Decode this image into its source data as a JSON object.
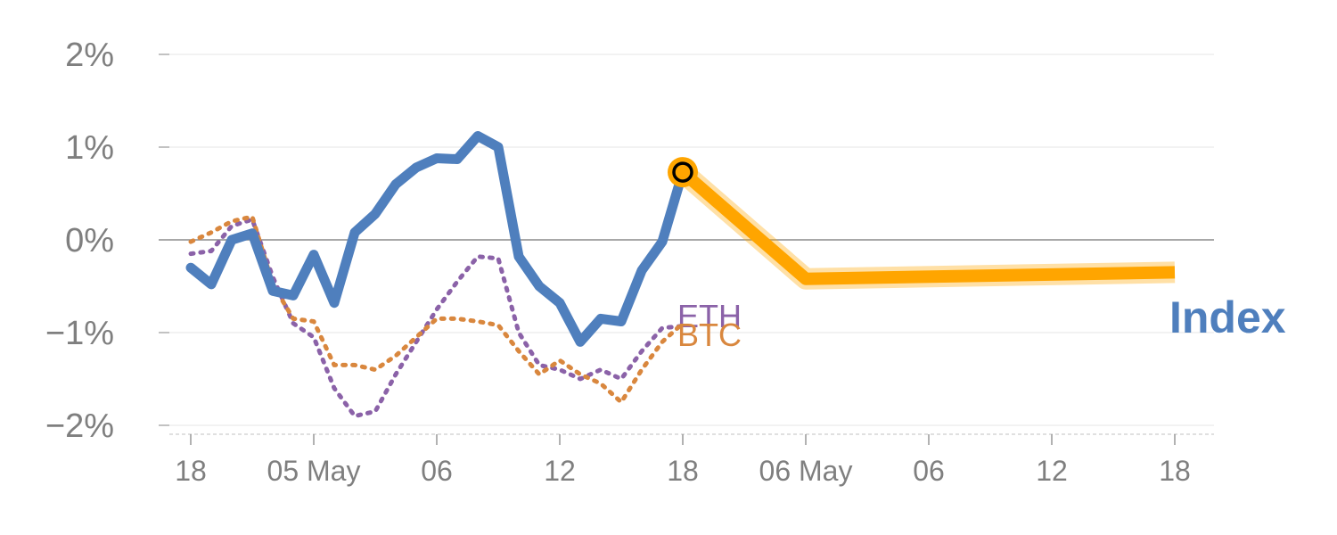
{
  "chart_data": {
    "type": "line",
    "title": "",
    "xlabel": "",
    "ylabel": "",
    "x_tick_labels": [
      "18",
      "05 May",
      "06",
      "12",
      "18",
      "06 May",
      "06",
      "12",
      "18"
    ],
    "y_ticks": [
      {
        "value": 2,
        "label": "2%"
      },
      {
        "value": 1,
        "label": "1%"
      },
      {
        "value": 0,
        "label": "0%"
      },
      {
        "value": -1,
        "label": "−1%"
      },
      {
        "value": -2,
        "label": "−2%"
      }
    ],
    "ylim": [
      -2.1,
      2.1
    ],
    "series": [
      {
        "name": "Index",
        "color": "#4f7fbd",
        "style": "solid",
        "values": [
          -0.3,
          -0.48,
          0.0,
          0.07,
          -0.55,
          -0.6,
          -0.16,
          -0.68,
          0.08,
          0.28,
          0.6,
          0.78,
          0.88,
          0.87,
          1.12,
          1.0,
          -0.18,
          -0.5,
          -0.68,
          -1.1,
          -0.85,
          -0.88,
          -0.33,
          -0.02,
          0.73
        ]
      },
      {
        "name": "ETH",
        "color": "#8b62a8",
        "style": "dotted",
        "values": [
          -0.15,
          -0.12,
          0.15,
          0.22,
          -0.4,
          -0.9,
          -1.05,
          -1.6,
          -1.9,
          -1.85,
          -1.45,
          -1.1,
          -0.75,
          -0.45,
          -0.18,
          -0.2,
          -1.0,
          -1.35,
          -1.4,
          -1.5,
          -1.4,
          -1.5,
          -1.2,
          -0.95,
          -0.93
        ]
      },
      {
        "name": "BTC",
        "color": "#d9873e",
        "style": "dotted",
        "values": [
          -0.02,
          0.08,
          0.2,
          0.25,
          -0.48,
          -0.85,
          -0.88,
          -1.35,
          -1.35,
          -1.4,
          -1.25,
          -1.05,
          -0.85,
          -0.85,
          -0.88,
          -0.92,
          -1.2,
          -1.45,
          -1.3,
          -1.45,
          -1.55,
          -1.75,
          -1.4,
          -1.1,
          -0.9
        ]
      }
    ],
    "projection": {
      "color": "#ffa500",
      "points": [
        {
          "tick": 4,
          "value": 0.73
        },
        {
          "tick": 5,
          "value": -0.42
        },
        {
          "tick": 8,
          "value": -0.35
        }
      ]
    },
    "labels": {
      "index": "Index",
      "eth": "ETH",
      "btc": "BTC"
    }
  }
}
